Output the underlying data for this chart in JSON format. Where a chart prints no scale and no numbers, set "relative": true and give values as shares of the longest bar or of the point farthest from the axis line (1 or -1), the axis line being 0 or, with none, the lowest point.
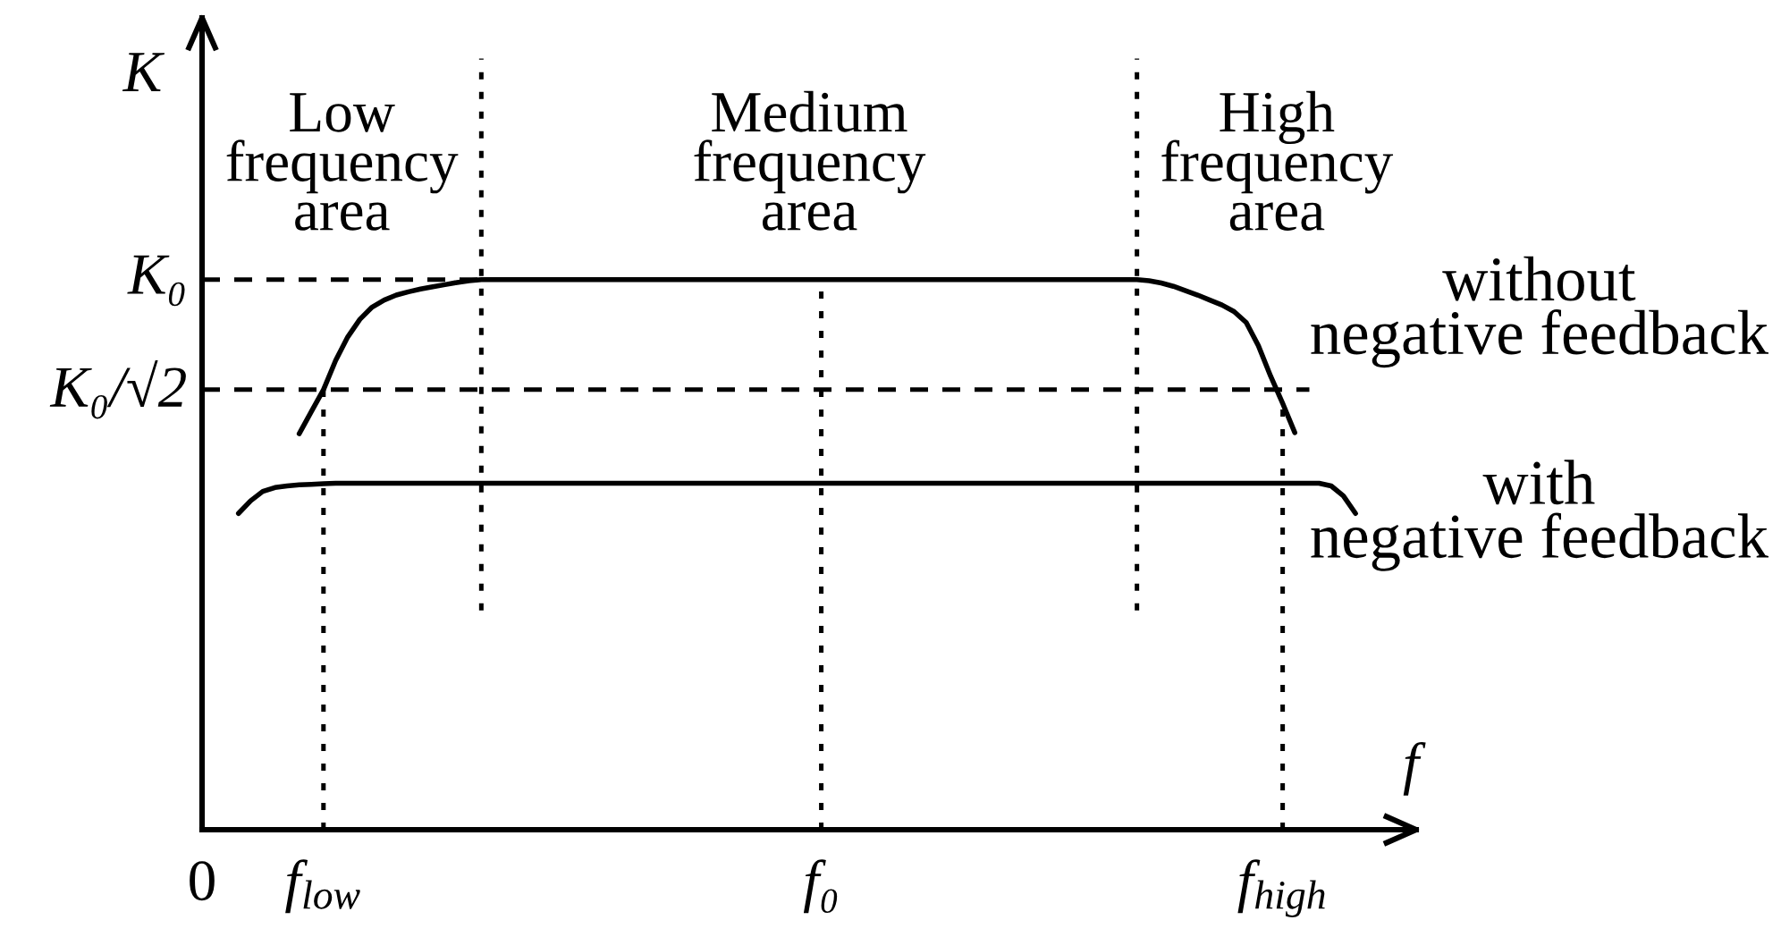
{
  "chart_data": {
    "type": "line",
    "relative": true,
    "xlabel": "f",
    "ylabel": "K",
    "line_style": "solid",
    "grid": "x",
    "categories": [
      "0",
      null,
      null,
      null,
      null,
      null,
      null,
      null,
      null,
      null,
      "f$_{low}$",
      null,
      null,
      null,
      null,
      null,
      null,
      null,
      null,
      null,
      null,
      null,
      null,
      null,
      null,
      null,
      null,
      null,
      null,
      null,
      null,
      null,
      null,
      null,
      null,
      null,
      null,
      null,
      null,
      null,
      null,
      null,
      null,
      null,
      null,
      null,
      null,
      null,
      null,
      null,
      null,
      "f₀",
      null,
      null,
      null,
      null,
      null,
      null,
      null,
      null,
      null,
      null,
      null,
      null,
      null,
      null,
      null,
      null,
      null,
      null,
      null,
      null,
      null,
      null,
      null,
      null,
      null,
      null,
      null,
      null,
      null,
      null,
      null,
      null,
      null,
      null,
      null,
      null,
      null,
      "f$_{high}$",
      null,
      null,
      null,
      null,
      null,
      null,
      null,
      null,
      null,
      null,
      null
    ],
    "series": [
      {
        "name": "without\nnegative feedback",
        "color": "#000000",
        "values": [
          null,
          null,
          null,
          null,
          null,
          null,
          null,
          null,
          0.72,
          0.76,
          0.8,
          0.853,
          0.896,
          0.928,
          0.95,
          0.963,
          0.972,
          0.978,
          0.983,
          0.987,
          0.991,
          0.995,
          0.998,
          1,
          1,
          1,
          1,
          1,
          1,
          1,
          1,
          1,
          1,
          1,
          1,
          1,
          1,
          1,
          1,
          1,
          1,
          1,
          1,
          1,
          1,
          1,
          1,
          1,
          1,
          1,
          1,
          1,
          1,
          1,
          1,
          1,
          1,
          1,
          1,
          1,
          1,
          1,
          1,
          1,
          1,
          1,
          1,
          1,
          1,
          1,
          1,
          1,
          1,
          1,
          1,
          1,
          1,
          1,
          0.998,
          0.994,
          0.988,
          0.98,
          0.972,
          0.963,
          0.954,
          0.942,
          0.922,
          0.88,
          0.825,
          0.775,
          0.722,
          null,
          null,
          null,
          null,
          null,
          null,
          null,
          null,
          null,
          null
        ]
      },
      {
        "name": "with\nnegative feedback",
        "color": "#000000",
        "values": [
          null,
          null,
          null,
          0.575,
          0.598,
          0.615,
          0.622,
          0.625,
          0.627,
          0.628,
          0.629,
          0.63,
          0.63,
          0.63,
          0.63,
          0.63,
          0.63,
          0.63,
          0.63,
          0.63,
          0.63,
          0.63,
          0.63,
          0.63,
          0.63,
          0.63,
          0.63,
          0.63,
          0.63,
          0.63,
          0.63,
          0.63,
          0.63,
          0.63,
          0.63,
          0.63,
          0.63,
          0.63,
          0.63,
          0.63,
          0.63,
          0.63,
          0.63,
          0.63,
          0.63,
          0.63,
          0.63,
          0.63,
          0.63,
          0.63,
          0.63,
          0.63,
          0.63,
          0.63,
          0.63,
          0.63,
          0.63,
          0.63,
          0.63,
          0.63,
          0.63,
          0.63,
          0.63,
          0.63,
          0.63,
          0.63,
          0.63,
          0.63,
          0.63,
          0.63,
          0.63,
          0.63,
          0.63,
          0.63,
          0.63,
          0.63,
          0.63,
          0.63,
          0.63,
          0.63,
          0.63,
          0.63,
          0.63,
          0.63,
          0.63,
          0.63,
          0.63,
          0.63,
          0.63,
          0.63,
          0.63,
          0.63,
          0.63,
          0.625,
          0.607,
          0.575,
          null,
          null,
          null,
          null,
          null
        ]
      }
    ],
    "ref_lines": [
      {
        "axis": "y",
        "value": 1,
        "label": "K₀",
        "line_style": "dashed"
      },
      {
        "axis": "y",
        "value": 0.8,
        "label": "K₀/√2",
        "line_style": "dashed"
      }
    ],
    "annotations": [
      "Low\nfrequency\narea",
      "Medium\nfrequency\narea",
      "High\nfrequency\narea"
    ]
  }
}
